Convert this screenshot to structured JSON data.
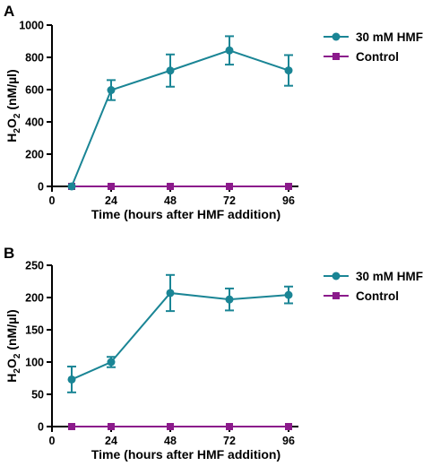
{
  "chart_data": [
    {
      "type": "line",
      "panel_label": "A",
      "title": "",
      "xlabel": "Time (hours after HMF addition)",
      "ylabel_main": "H",
      "ylabel_sub": "2",
      "ylabel_o": "O",
      "ylabel_sub2": "2",
      "ylabel_unit": " (nM/µl)",
      "xlim": [
        0,
        100
      ],
      "ylim": [
        0,
        1000
      ],
      "xticks": [
        0,
        24,
        48,
        72,
        96
      ],
      "yticks": [
        0,
        200,
        400,
        600,
        800,
        1000
      ],
      "legend_position": "top-right",
      "series": [
        {
          "name": "30 mM HMF",
          "color": "#1a8595",
          "marker": "circle",
          "x": [
            8,
            24,
            48,
            72,
            96
          ],
          "y": [
            0,
            597,
            718,
            843,
            719
          ],
          "err": [
            0,
            62,
            100,
            88,
            95
          ]
        },
        {
          "name": "Control",
          "color": "#8b1a8b",
          "marker": "square",
          "x": [
            8,
            24,
            48,
            72,
            96
          ],
          "y": [
            0,
            0,
            0,
            0,
            0
          ],
          "err": [
            0,
            0,
            0,
            0,
            0
          ]
        }
      ]
    },
    {
      "type": "line",
      "panel_label": "B",
      "title": "",
      "xlabel": "Time (hours after HMF addition)",
      "ylabel_main": "H",
      "ylabel_sub": "2",
      "ylabel_o": "O",
      "ylabel_sub2": "2",
      "ylabel_unit": " (nM/µl)",
      "xlim": [
        0,
        100
      ],
      "ylim": [
        0,
        250
      ],
      "xticks": [
        0,
        24,
        48,
        72,
        96
      ],
      "yticks": [
        0,
        50,
        100,
        150,
        200,
        250
      ],
      "legend_position": "top-right",
      "series": [
        {
          "name": "30 mM HMF",
          "color": "#1a8595",
          "marker": "circle",
          "x": [
            8,
            24,
            48,
            72,
            96
          ],
          "y": [
            73,
            100,
            207,
            197,
            204
          ],
          "err": [
            20,
            8,
            28,
            17,
            13
          ]
        },
        {
          "name": "Control",
          "color": "#8b1a8b",
          "marker": "square",
          "x": [
            8,
            24,
            48,
            72,
            96
          ],
          "y": [
            0,
            0,
            0,
            0,
            0
          ],
          "err": [
            0,
            0,
            0,
            0,
            0
          ]
        }
      ]
    }
  ]
}
